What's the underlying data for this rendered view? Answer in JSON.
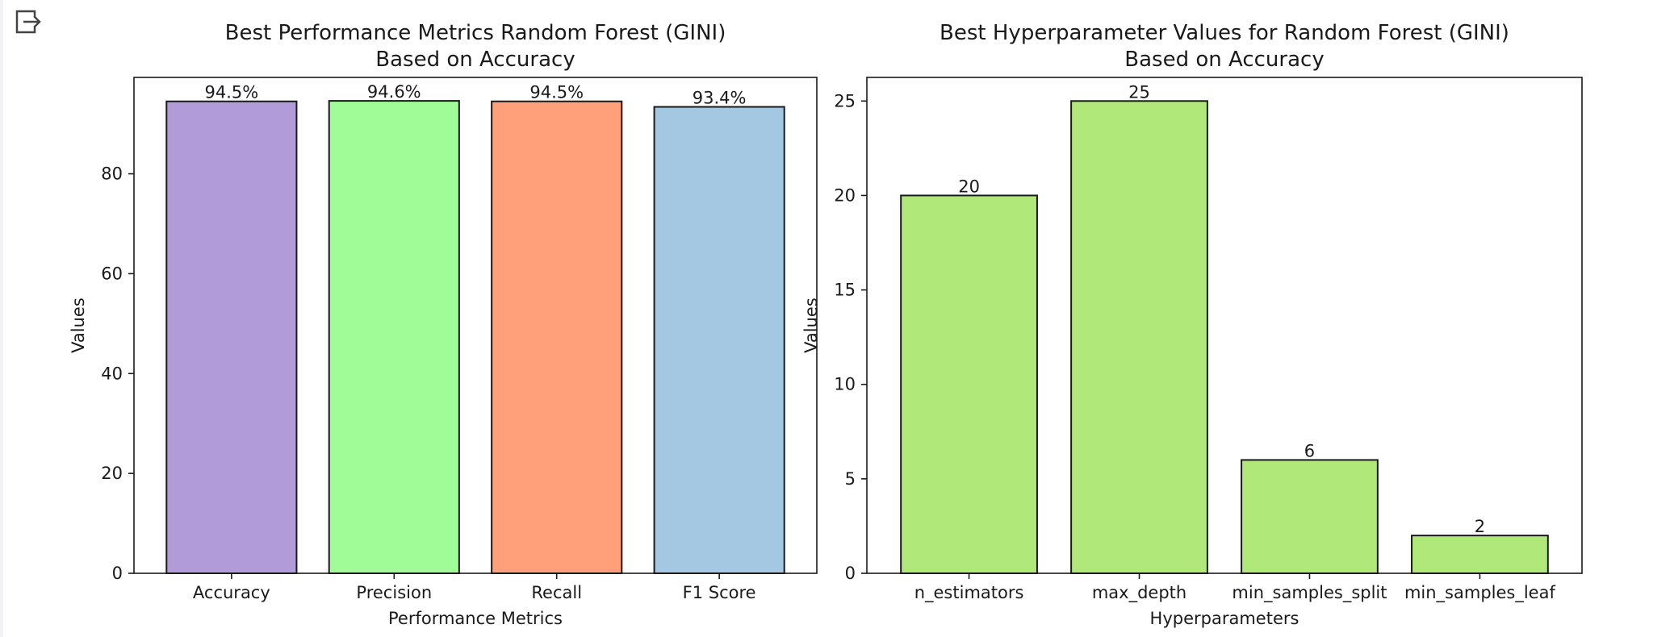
{
  "chart_data": [
    {
      "type": "bar",
      "title": [
        "Best Performance Metrics Random Forest (GINI)",
        "Based on Accuracy"
      ],
      "xlabel": "Performance Metrics",
      "ylabel": "Values",
      "categories": [
        "Accuracy",
        "Precision",
        "Recall",
        "F1 Score"
      ],
      "values": [
        94.5,
        94.6,
        94.5,
        93.4
      ],
      "value_labels": [
        "94.5%",
        "94.6%",
        "94.5%",
        "93.4%"
      ],
      "colors": [
        "#b19cd9",
        "#a0fc97",
        "#ffa07a",
        "#a4c8e1"
      ],
      "ylim": [
        0,
        99.3
      ],
      "yticks": [
        0,
        20,
        40,
        60,
        80
      ],
      "grid": false,
      "legend": "none"
    },
    {
      "type": "bar",
      "title": [
        "Best Hyperparameter Values for Random Forest (GINI)",
        "Based on Accuracy"
      ],
      "xlabel": "Hyperparameters",
      "ylabel": "Values",
      "categories": [
        "n_estimators",
        "max_depth",
        "min_samples_split",
        "min_samples_leaf"
      ],
      "values": [
        20,
        25,
        6,
        2
      ],
      "value_labels": [
        "20",
        "25",
        "6",
        "2"
      ],
      "colors": [
        "#b1e87a",
        "#b1e87a",
        "#b1e87a",
        "#b1e87a"
      ],
      "ylim": [
        0,
        26.25
      ],
      "yticks": [
        0,
        5,
        10,
        15,
        20,
        25
      ],
      "grid": false,
      "legend": "none"
    }
  ],
  "ui": {
    "output_icon": "output-redirect-icon"
  }
}
